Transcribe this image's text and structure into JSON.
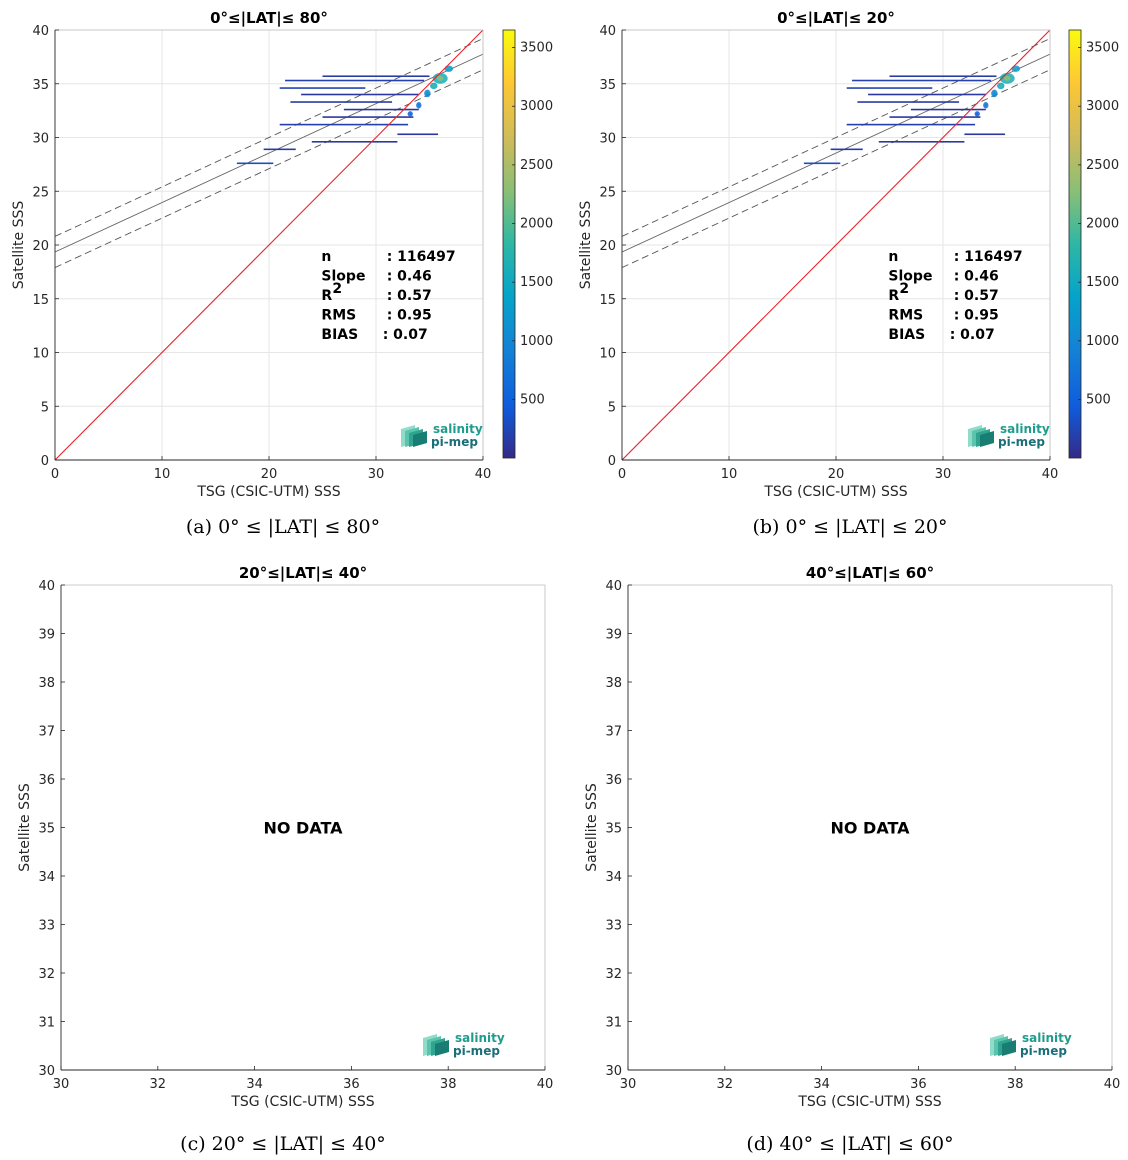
{
  "chart_data": [
    {
      "type": "scatter",
      "title": "0°≤|LAT|≤ 80°",
      "caption": "(a) 0° ≤ |LAT| ≤ 80°",
      "xlabel": "TSG (CSIC-UTM) SSS",
      "ylabel": "Satellite SSS",
      "xlim": [
        0,
        40
      ],
      "ylim": [
        0,
        40
      ],
      "xticks": [
        0,
        10,
        20,
        30,
        40
      ],
      "yticks": [
        0,
        5,
        10,
        15,
        20,
        25,
        30,
        35,
        40
      ],
      "grid": true,
      "has_data": true,
      "one_to_one_line": {
        "color": "#e8242a"
      },
      "regression": {
        "intercept": 19.35,
        "slope": 0.46,
        "band_offset": 1.45
      },
      "stats": {
        "labels": [
          "n",
          "Slope",
          "R",
          "RMS",
          "BIAS"
        ],
        "values": [
          ": 116497",
          ": 0.46",
          ": 0.57",
          ": 0.95",
          ": 0.07"
        ],
        "r_superscript": "2"
      },
      "colorbar": {
        "ticks": [
          500,
          1000,
          1500,
          2000,
          2500,
          3000,
          3500
        ],
        "min": 1,
        "max": 3650
      },
      "segments": [
        {
          "x1": 17.0,
          "x2": 20.4,
          "y": 27.6,
          "c": 300
        },
        {
          "x1": 19.5,
          "x2": 22.5,
          "y": 28.9,
          "c": 150
        },
        {
          "x1": 24.0,
          "x2": 32.0,
          "y": 29.6,
          "c": 120
        },
        {
          "x1": 32.0,
          "x2": 35.8,
          "y": 30.3,
          "c": 110
        },
        {
          "x1": 21.0,
          "x2": 33.0,
          "y": 31.2,
          "c": 180
        },
        {
          "x1": 25.0,
          "x2": 33.5,
          "y": 31.9,
          "c": 120
        },
        {
          "x1": 27.0,
          "x2": 34.0,
          "y": 32.6,
          "c": 100
        },
        {
          "x1": 22.0,
          "x2": 31.5,
          "y": 33.3,
          "c": 140
        },
        {
          "x1": 23.0,
          "x2": 34.0,
          "y": 34.0,
          "c": 130
        },
        {
          "x1": 21.0,
          "x2": 29.0,
          "y": 34.6,
          "c": 220
        },
        {
          "x1": 21.5,
          "x2": 34.5,
          "y": 35.3,
          "c": 200
        },
        {
          "x1": 25.0,
          "x2": 35.0,
          "y": 35.7,
          "c": 160
        }
      ],
      "clusters": [
        {
          "x": 36.0,
          "y": 35.5,
          "rx": 0.7,
          "ry": 0.5,
          "c": 1600
        },
        {
          "x": 36.8,
          "y": 36.4,
          "rx": 0.4,
          "ry": 0.3,
          "c": 1200
        },
        {
          "x": 34.8,
          "y": 34.1,
          "rx": 0.3,
          "ry": 0.35,
          "c": 900
        },
        {
          "x": 34.0,
          "y": 33.0,
          "rx": 0.25,
          "ry": 0.3,
          "c": 700
        },
        {
          "x": 33.2,
          "y": 32.2,
          "rx": 0.25,
          "ry": 0.25,
          "c": 500
        },
        {
          "x": 35.4,
          "y": 34.8,
          "rx": 0.35,
          "ry": 0.3,
          "c": 1400
        }
      ]
    },
    {
      "type": "scatter",
      "title": "0°≤|LAT|≤ 20°",
      "caption": "(b) 0° ≤ |LAT| ≤ 20°",
      "xlabel": "TSG (CSIC-UTM) SSS",
      "ylabel": "Satellite SSS",
      "xlim": [
        0,
        40
      ],
      "ylim": [
        0,
        40
      ],
      "xticks": [
        0,
        10,
        20,
        30,
        40
      ],
      "yticks": [
        0,
        5,
        10,
        15,
        20,
        25,
        30,
        35,
        40
      ],
      "grid": true,
      "has_data": true,
      "one_to_one_line": {
        "color": "#e8242a"
      },
      "regression": {
        "intercept": 19.35,
        "slope": 0.46,
        "band_offset": 1.45
      },
      "stats": {
        "labels": [
          "n",
          "Slope",
          "R",
          "RMS",
          "BIAS"
        ],
        "values": [
          ": 116497",
          ": 0.46",
          ": 0.57",
          ": 0.95",
          ": 0.07"
        ],
        "r_superscript": "2"
      },
      "colorbar": {
        "ticks": [
          500,
          1000,
          1500,
          2000,
          2500,
          3000,
          3500
        ],
        "min": 1,
        "max": 3650
      },
      "segments": [
        {
          "x1": 17.0,
          "x2": 20.4,
          "y": 27.6,
          "c": 300
        },
        {
          "x1": 19.5,
          "x2": 22.5,
          "y": 28.9,
          "c": 150
        },
        {
          "x1": 24.0,
          "x2": 32.0,
          "y": 29.6,
          "c": 120
        },
        {
          "x1": 32.0,
          "x2": 35.8,
          "y": 30.3,
          "c": 110
        },
        {
          "x1": 21.0,
          "x2": 33.0,
          "y": 31.2,
          "c": 180
        },
        {
          "x1": 25.0,
          "x2": 33.5,
          "y": 31.9,
          "c": 120
        },
        {
          "x1": 27.0,
          "x2": 34.0,
          "y": 32.6,
          "c": 100
        },
        {
          "x1": 22.0,
          "x2": 31.5,
          "y": 33.3,
          "c": 140
        },
        {
          "x1": 23.0,
          "x2": 34.0,
          "y": 34.0,
          "c": 130
        },
        {
          "x1": 21.0,
          "x2": 29.0,
          "y": 34.6,
          "c": 220
        },
        {
          "x1": 21.5,
          "x2": 34.5,
          "y": 35.3,
          "c": 200
        },
        {
          "x1": 25.0,
          "x2": 35.0,
          "y": 35.7,
          "c": 160
        }
      ],
      "clusters": [
        {
          "x": 36.0,
          "y": 35.5,
          "rx": 0.7,
          "ry": 0.5,
          "c": 1600
        },
        {
          "x": 36.8,
          "y": 36.4,
          "rx": 0.4,
          "ry": 0.3,
          "c": 1200
        },
        {
          "x": 34.8,
          "y": 34.1,
          "rx": 0.3,
          "ry": 0.35,
          "c": 900
        },
        {
          "x": 34.0,
          "y": 33.0,
          "rx": 0.25,
          "ry": 0.3,
          "c": 700
        },
        {
          "x": 33.2,
          "y": 32.2,
          "rx": 0.25,
          "ry": 0.25,
          "c": 500
        },
        {
          "x": 35.4,
          "y": 34.8,
          "rx": 0.35,
          "ry": 0.3,
          "c": 1400
        }
      ]
    },
    {
      "type": "scatter",
      "title": "20°≤|LAT|≤ 40°",
      "caption": "(c) 20° ≤ |LAT| ≤ 40°",
      "xlabel": "TSG (CSIC-UTM) SSS",
      "ylabel": "Satellite SSS",
      "xlim": [
        30,
        40
      ],
      "ylim": [
        30,
        40
      ],
      "xticks": [
        30,
        32,
        34,
        36,
        38,
        40
      ],
      "yticks": [
        30,
        31,
        32,
        33,
        34,
        35,
        36,
        37,
        38,
        39,
        40
      ],
      "grid": false,
      "has_data": false,
      "no_data_label": "NO DATA"
    },
    {
      "type": "scatter",
      "title": "40°≤|LAT|≤ 60°",
      "caption": "(d) 40° ≤ |LAT| ≤ 60°",
      "xlabel": "TSG (CSIC-UTM) SSS",
      "ylabel": "Satellite SSS",
      "xlim": [
        30,
        40
      ],
      "ylim": [
        30,
        40
      ],
      "xticks": [
        30,
        32,
        34,
        36,
        38,
        40
      ],
      "yticks": [
        30,
        31,
        32,
        33,
        34,
        35,
        36,
        37,
        38,
        39,
        40
      ],
      "grid": false,
      "has_data": false,
      "no_data_label": "NO DATA"
    }
  ],
  "logo": {
    "line1": "salinity",
    "line2": "pi-mep"
  }
}
